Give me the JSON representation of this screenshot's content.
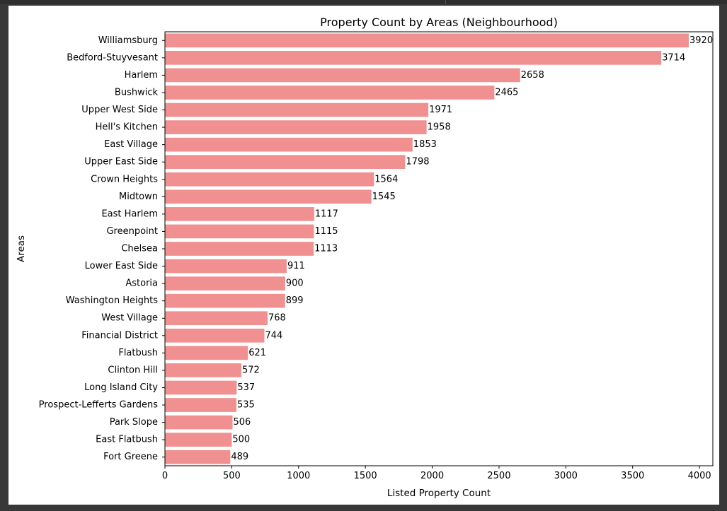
{
  "chart_data": {
    "type": "bar",
    "orientation": "horizontal",
    "title": "Property Count by Areas (Neighbourhood)",
    "xlabel": "Listed Property Count",
    "ylabel": "Areas",
    "xlim": [
      0,
      4100
    ],
    "xticks": [
      0,
      500,
      1000,
      1500,
      2000,
      2500,
      3000,
      3500,
      4000
    ],
    "bar_color": "#f09090",
    "grid": false,
    "categories": [
      "Williamsburg",
      "Bedford-Stuyvesant",
      "Harlem",
      "Bushwick",
      "Upper West Side",
      "Hell's Kitchen",
      "East Village",
      "Upper East Side",
      "Crown Heights",
      "Midtown",
      "East Harlem",
      "Greenpoint",
      "Chelsea",
      "Lower East Side",
      "Astoria",
      "Washington Heights",
      "West Village",
      "Financial District",
      "Flatbush",
      "Clinton Hill",
      "Long Island City",
      "Prospect-Lefferts Gardens",
      "Park Slope",
      "East Flatbush",
      "Fort Greene"
    ],
    "values": [
      3920,
      3714,
      2658,
      2465,
      1971,
      1958,
      1853,
      1798,
      1564,
      1545,
      1117,
      1115,
      1113,
      911,
      900,
      899,
      768,
      744,
      621,
      572,
      537,
      535,
      506,
      500,
      489
    ]
  }
}
